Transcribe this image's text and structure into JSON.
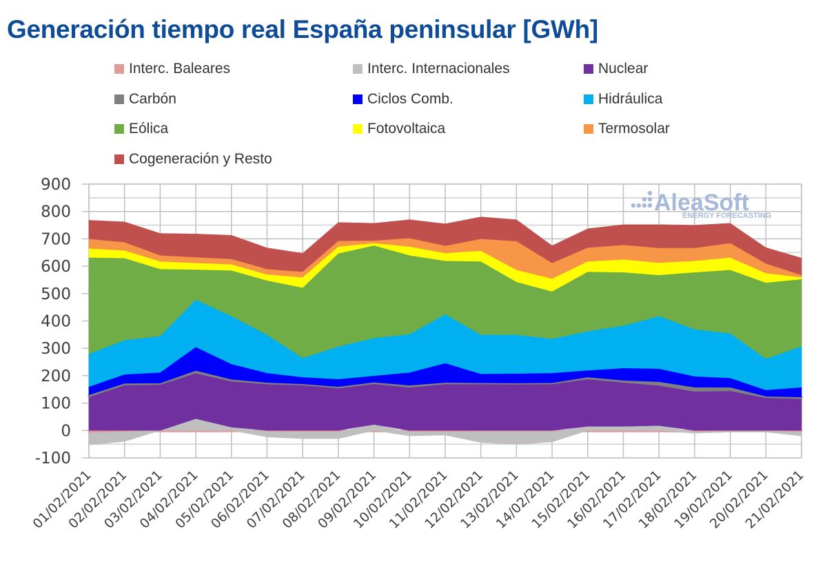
{
  "title": "Generación tiempo real España peninsular [GWh]",
  "watermark": {
    "main": "AleaSoft",
    "sub": "ENERGY FORECASTING"
  },
  "chart_data": {
    "type": "area",
    "stacked": true,
    "title": "Generación tiempo real España peninsular [GWh]",
    "xlabel": "",
    "ylabel": "",
    "ylim": [
      -100,
      900
    ],
    "yticks": [
      900,
      800,
      700,
      600,
      500,
      400,
      300,
      200,
      100,
      0,
      -100
    ],
    "grid": true,
    "legend_position": "top",
    "categories": [
      "01/02/2021",
      "02/02/2021",
      "03/02/2021",
      "04/02/2021",
      "05/02/2021",
      "06/02/2021",
      "07/02/2021",
      "08/02/2021",
      "09/02/2021",
      "10/02/2021",
      "11/02/2021",
      "12/02/2021",
      "13/02/2021",
      "14/02/2021",
      "15/02/2021",
      "16/02/2021",
      "17/02/2021",
      "18/02/2021",
      "19/02/2021",
      "20/02/2021",
      "21/02/2021"
    ],
    "series": [
      {
        "name": "Interc. Baleares",
        "color": "#e09a98",
        "values": [
          -8,
          -5,
          -3,
          -3,
          -3,
          -4,
          -5,
          -5,
          -3,
          -5,
          -5,
          -4,
          -4,
          -4,
          -3,
          -3,
          -3,
          -5,
          -3,
          -3,
          -5
        ]
      },
      {
        "name": "Interc. Internacionales",
        "color": "#bfbfbf",
        "values": [
          -45,
          -35,
          0,
          43,
          12,
          -20,
          -25,
          -25,
          22,
          -15,
          -12,
          -40,
          -47,
          -38,
          15,
          15,
          18,
          -5,
          -3,
          -3,
          -15
        ]
      },
      {
        "name": "Nuclear",
        "color": "#7030a0",
        "values": [
          125,
          168,
          170,
          169,
          170,
          172,
          168,
          157,
          151,
          160,
          172,
          172,
          171,
          172,
          175,
          163,
          149,
          145,
          147,
          122,
          118
        ]
      },
      {
        "name": "Carbón",
        "color": "#808080",
        "values": [
          5,
          4,
          3,
          7,
          5,
          3,
          2,
          3,
          3,
          5,
          3,
          2,
          2,
          2,
          5,
          5,
          11,
          13,
          11,
          3,
          4
        ]
      },
      {
        "name": "Ciclos Comb.",
        "color": "#0000ff",
        "values": [
          30,
          33,
          39,
          86,
          56,
          35,
          25,
          28,
          24,
          47,
          71,
          33,
          35,
          36,
          25,
          45,
          48,
          40,
          34,
          23,
          36
        ]
      },
      {
        "name": "Hidráulica",
        "color": "#00b0f0",
        "values": [
          120,
          125,
          133,
          173,
          175,
          140,
          70,
          119,
          138,
          140,
          179,
          143,
          142,
          125,
          143,
          155,
          192,
          172,
          163,
          114,
          150
        ]
      },
      {
        "name": "Eólica",
        "color": "#70ad47",
        "values": [
          352,
          300,
          245,
          110,
          167,
          198,
          257,
          340,
          338,
          288,
          195,
          268,
          193,
          173,
          217,
          195,
          150,
          208,
          232,
          278,
          245
        ]
      },
      {
        "name": "Fotovoltaica",
        "color": "#ffff00",
        "values": [
          33,
          28,
          28,
          24,
          22,
          22,
          38,
          25,
          9,
          32,
          28,
          39,
          44,
          47,
          38,
          47,
          45,
          42,
          45,
          35,
          7
        ]
      },
      {
        "name": "Termosolar",
        "color": "#f79646",
        "values": [
          35,
          30,
          22,
          21,
          20,
          20,
          20,
          21,
          9,
          31,
          27,
          43,
          105,
          57,
          50,
          53,
          54,
          47,
          53,
          35,
          8
        ]
      },
      {
        "name": "Cogeneración y Resto",
        "color": "#c0504d",
        "values": [
          68,
          74,
          80,
          85,
          86,
          77,
          67,
          67,
          63,
          67,
          80,
          80,
          78,
          63,
          69,
          74,
          85,
          83,
          72,
          58,
          62
        ]
      }
    ]
  },
  "legend": [
    {
      "label": "Interc. Baleares",
      "color": "#e09a98"
    },
    {
      "label": "Interc. Internacionales",
      "color": "#bfbfbf"
    },
    {
      "label": "Nuclear",
      "color": "#7030a0"
    },
    {
      "label": "Carbón",
      "color": "#808080"
    },
    {
      "label": "Ciclos Comb.",
      "color": "#0000ff"
    },
    {
      "label": "Hidráulica",
      "color": "#00b0f0"
    },
    {
      "label": "Eólica",
      "color": "#70ad47"
    },
    {
      "label": "Fotovoltaica",
      "color": "#ffff00"
    },
    {
      "label": "Termosolar",
      "color": "#f79646"
    },
    {
      "label": "Cogeneración y Resto",
      "color": "#c0504d"
    }
  ]
}
